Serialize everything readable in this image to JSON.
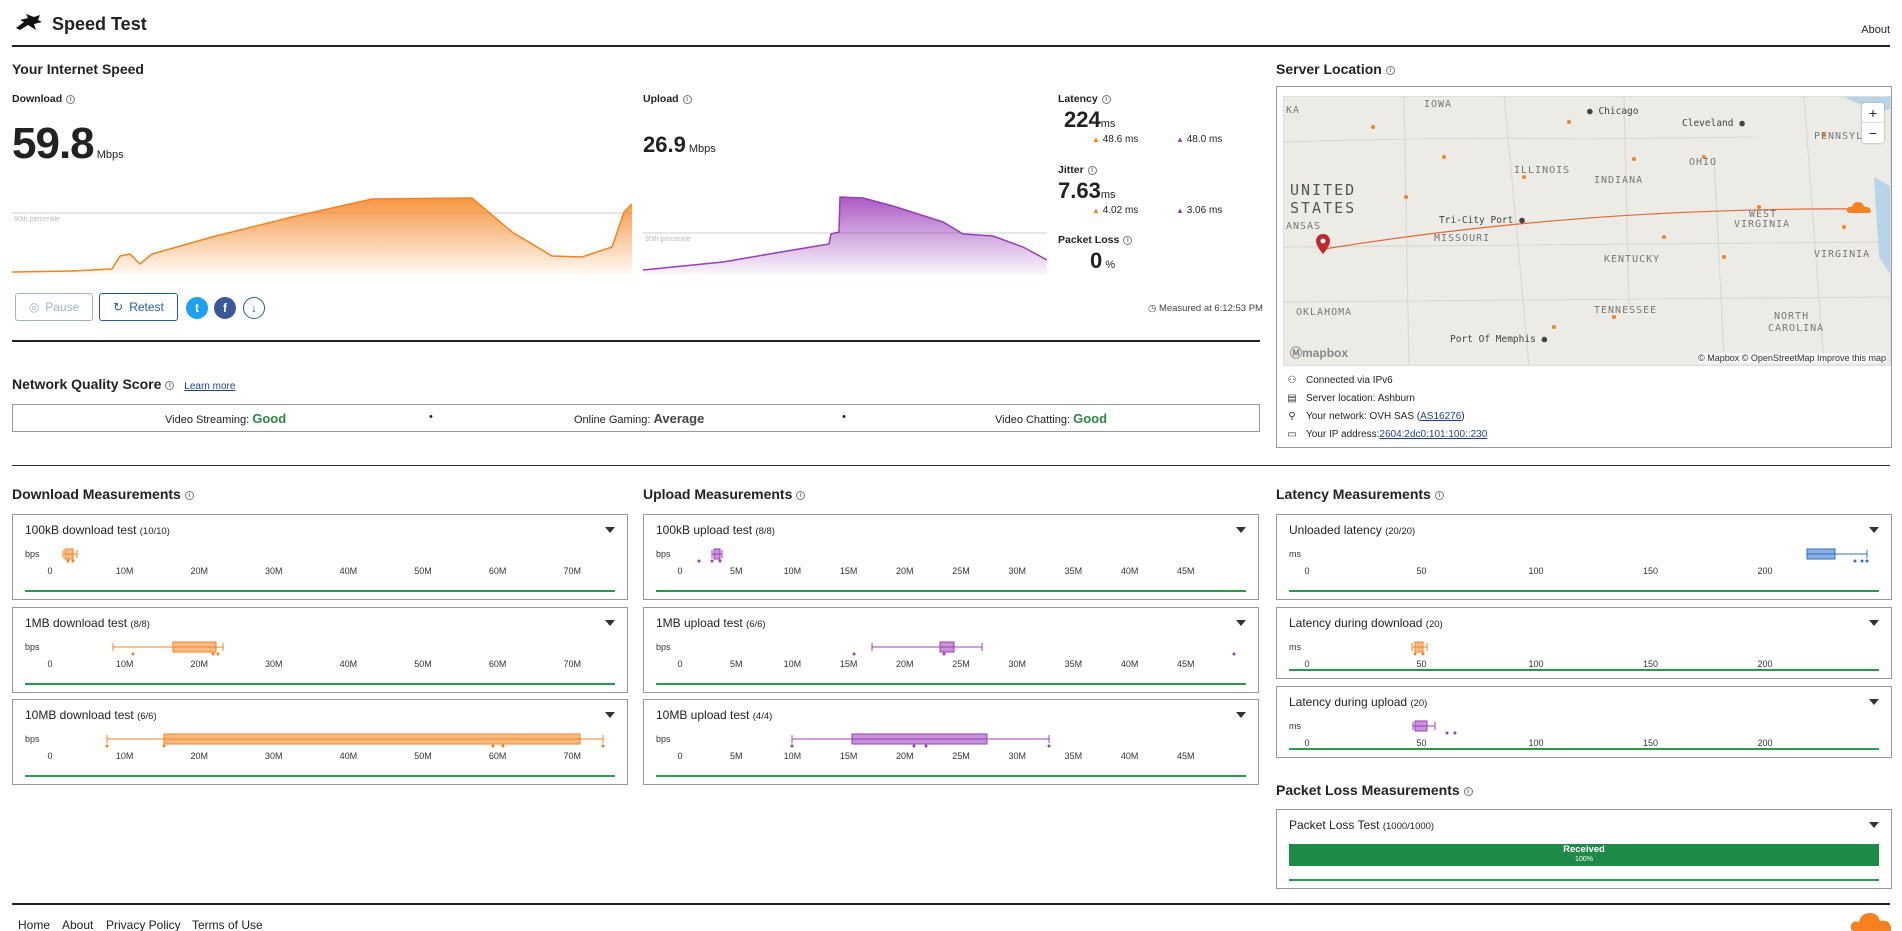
{
  "header": {
    "title": "Speed Test",
    "about": "About"
  },
  "speed": {
    "title": "Your Internet Speed",
    "download": {
      "label": "Download",
      "value": "59.8",
      "unit": "Mbps",
      "p90": "90th percentile"
    },
    "upload": {
      "label": "Upload",
      "value": "26.9",
      "unit": "Mbps",
      "p90": "90th percentile"
    },
    "latency": {
      "label": "Latency",
      "value": "224",
      "unit": "ms",
      "down": "48.6 ms",
      "up": "48.0 ms"
    },
    "jitter": {
      "label": "Jitter",
      "value": "7.63",
      "unit": "ms",
      "down": "4.02 ms",
      "up": "3.06 ms"
    },
    "packet_loss": {
      "label": "Packet Loss",
      "value": "0",
      "unit": "%"
    },
    "pause": "Pause",
    "retest": "Retest",
    "measured_at": "Measured at 6:12:53 PM"
  },
  "quality": {
    "title": "Network Quality Score",
    "learn_more": "Learn more",
    "streaming_label": "Video Streaming:",
    "streaming": "Good",
    "gaming_label": "Online Gaming:",
    "gaming": "Average",
    "chatting_label": "Video Chatting:",
    "chatting": "Good",
    "dot": "•"
  },
  "server": {
    "title": "Server Location",
    "connected": "Connected via IPv6",
    "location": "Server location: Ashburn",
    "network_prefix": "Your network: OVH SAS (",
    "network_link": "AS16276",
    "network_suffix": ")",
    "ip_prefix": "Your IP address: ",
    "ip": "2604:2dc0:101:100::230",
    "map": {
      "country1": "UNITED",
      "country2": "STATES",
      "states": [
        "IOWA",
        "ILLINOIS",
        "INDIANA",
        "OHIO",
        "PENNSYLVA",
        "MISSOURI",
        "KENTUCKY",
        "WEST",
        "VIRGINIA",
        "VIRGINIA",
        "TENNESSEE",
        "OKLAHOMA",
        "NORTH",
        "CAROLINA",
        "ANSAS",
        "KA"
      ],
      "cities": [
        "Chicago",
        "Cleveland",
        "Tri-City Port",
        "Port Of Memphis"
      ],
      "attribution": "© Mapbox © OpenStreetMap  Improve this map",
      "logo": "mapbox",
      "zoom_in": "+",
      "zoom_out": "−"
    }
  },
  "download_meas": {
    "title": "Download Measurements",
    "axis": [
      "0",
      "10M",
      "20M",
      "30M",
      "40M",
      "50M",
      "60M",
      "70M"
    ],
    "unit": "bps",
    "tests": [
      {
        "name": "100kB download test",
        "count": "(10/10)"
      },
      {
        "name": "1MB download test",
        "count": "(8/8)"
      },
      {
        "name": "10MB download test",
        "count": "(6/6)"
      }
    ]
  },
  "upload_meas": {
    "title": "Upload Measurements",
    "axis": [
      "0",
      "5M",
      "10M",
      "15M",
      "20M",
      "25M",
      "30M",
      "35M",
      "40M",
      "45M"
    ],
    "unit": "bps",
    "tests": [
      {
        "name": "100kB upload test",
        "count": "(8/8)"
      },
      {
        "name": "1MB upload test",
        "count": "(6/6)"
      },
      {
        "name": "10MB upload test",
        "count": "(4/4)"
      }
    ]
  },
  "latency_meas": {
    "title": "Latency Measurements",
    "axis": [
      "0",
      "50",
      "100",
      "150",
      "200"
    ],
    "unit": "ms",
    "tests": [
      {
        "name": "Unloaded latency",
        "count": "(20/20)"
      },
      {
        "name": "Latency during download",
        "count": "(20)"
      },
      {
        "name": "Latency during upload",
        "count": "(20)"
      }
    ]
  },
  "packet_meas": {
    "title": "Packet Loss Measurements",
    "test": "Packet Loss Test",
    "count": "(1000/1000)",
    "bar_label": "Received",
    "bar_pct": "100%"
  },
  "footer": {
    "home": "Home",
    "about": "About",
    "privacy": "Privacy Policy",
    "terms": "Terms of Use"
  },
  "colors": {
    "download": "#f5821f",
    "upload": "#9b3db8",
    "latency": "#2f6fc9",
    "good": "#2a8a3e",
    "received": "#1e8a47"
  }
}
